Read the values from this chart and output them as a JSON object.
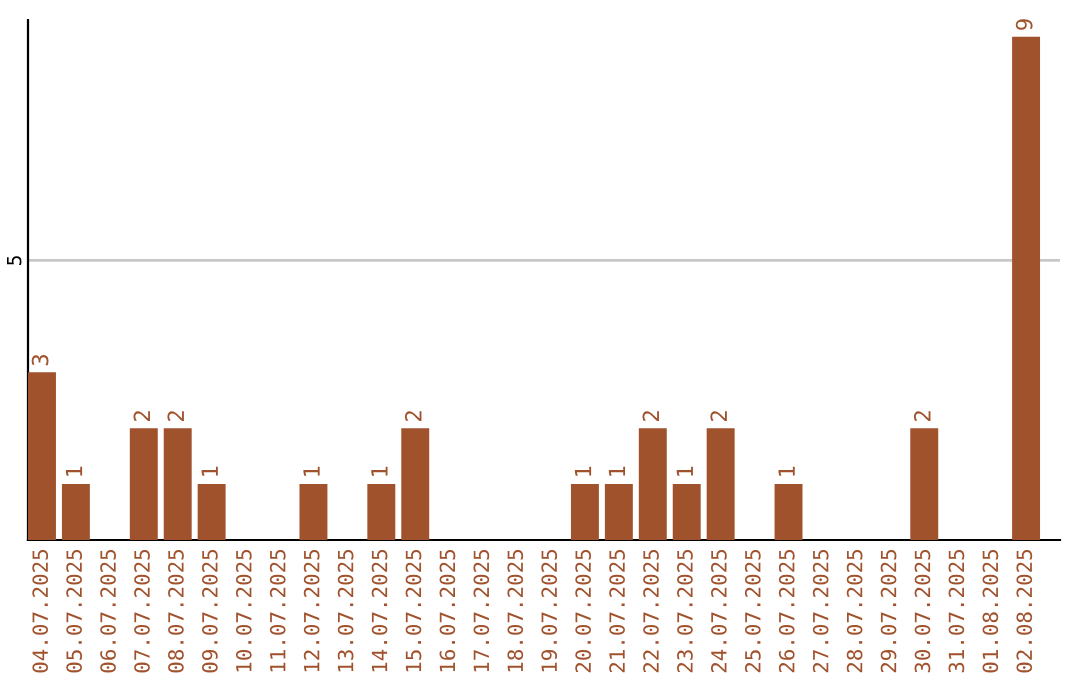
{
  "chart_data": {
    "type": "bar",
    "categories": [
      "04.07.2025",
      "05.07.2025",
      "06.07.2025",
      "07.07.2025",
      "08.07.2025",
      "09.07.2025",
      "10.07.2025",
      "11.07.2025",
      "12.07.2025",
      "13.07.2025",
      "14.07.2025",
      "15.07.2025",
      "16.07.2025",
      "17.07.2025",
      "18.07.2025",
      "19.07.2025",
      "20.07.2025",
      "21.07.2025",
      "22.07.2025",
      "23.07.2025",
      "24.07.2025",
      "25.07.2025",
      "26.07.2025",
      "27.07.2025",
      "28.07.2025",
      "29.07.2025",
      "30.07.2025",
      "31.07.2025",
      "01.08.2025",
      "02.08.2025"
    ],
    "values": [
      3,
      1,
      0,
      2,
      2,
      1,
      0,
      0,
      1,
      0,
      1,
      2,
      0,
      0,
      0,
      0,
      1,
      1,
      2,
      1,
      2,
      0,
      1,
      0,
      0,
      0,
      2,
      0,
      0,
      9
    ],
    "value_labels": [
      "3",
      "1",
      null,
      "2",
      "2",
      "1",
      null,
      null,
      "1",
      null,
      "1",
      "2",
      null,
      null,
      null,
      null,
      "1",
      "1",
      "2",
      "1",
      "2",
      null,
      "1",
      null,
      null,
      null,
      "2",
      null,
      null,
      "9"
    ],
    "color": "#a0522d",
    "ylim": [
      0,
      9.3
    ],
    "yticks": [
      5
    ],
    "grid": "y"
  }
}
